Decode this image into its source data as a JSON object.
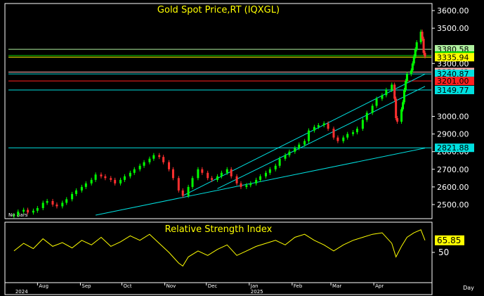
{
  "chart_data": [
    {
      "type": "candlestick",
      "title": "Gold Spot Price,RT (IQXGL)",
      "ylim": [
        2420,
        3640
      ],
      "y_ticks": [
        "3600.00",
        "3500.00",
        "3300.00",
        "3000.00",
        "2900.00",
        "2800.00",
        "2700.00",
        "2600.00",
        "2500.00"
      ],
      "no_bars_label": "No Bars",
      "series": [
        {
          "name": "",
          "points": [
            [
              "2024-07-15",
              2440
            ],
            [
              "2024-07-18",
              2460
            ],
            [
              "2024-07-22",
              2470
            ],
            [
              "2024-07-25",
              2455
            ],
            [
              "2024-07-29",
              2465
            ],
            [
              "2024-08-01",
              2480
            ],
            [
              "2024-08-05",
              2510
            ],
            [
              "2024-08-08",
              2520
            ],
            [
              "2024-08-12",
              2500
            ],
            [
              "2024-08-15",
              2490
            ],
            [
              "2024-08-19",
              2510
            ],
            [
              "2024-08-22",
              2530
            ],
            [
              "2024-08-26",
              2560
            ],
            [
              "2024-08-29",
              2580
            ],
            [
              "2024-09-02",
              2600
            ],
            [
              "2024-09-05",
              2620
            ],
            [
              "2024-09-09",
              2640
            ],
            [
              "2024-09-12",
              2670
            ],
            [
              "2024-09-16",
              2660
            ],
            [
              "2024-09-19",
              2650
            ],
            [
              "2024-09-23",
              2640
            ],
            [
              "2024-09-26",
              2620
            ],
            [
              "2024-09-30",
              2640
            ],
            [
              "2024-10-03",
              2660
            ],
            [
              "2024-10-07",
              2680
            ],
            [
              "2024-10-10",
              2700
            ],
            [
              "2024-10-14",
              2720
            ],
            [
              "2024-10-17",
              2740
            ],
            [
              "2024-10-21",
              2760
            ],
            [
              "2024-10-24",
              2780
            ],
            [
              "2024-10-28",
              2770
            ],
            [
              "2024-10-31",
              2740
            ],
            [
              "2024-11-04",
              2700
            ],
            [
              "2024-11-07",
              2650
            ],
            [
              "2024-11-11",
              2580
            ],
            [
              "2024-11-14",
              2550
            ],
            [
              "2024-11-18",
              2600
            ],
            [
              "2024-11-21",
              2650
            ],
            [
              "2024-11-25",
              2700
            ],
            [
              "2024-11-28",
              2680
            ],
            [
              "2024-12-02",
              2650
            ],
            [
              "2024-12-05",
              2640
            ],
            [
              "2024-12-09",
              2660
            ],
            [
              "2024-12-12",
              2680
            ],
            [
              "2024-12-16",
              2700
            ],
            [
              "2024-12-19",
              2660
            ],
            [
              "2024-12-23",
              2620
            ],
            [
              "2024-12-26",
              2600
            ],
            [
              "2024-12-30",
              2610
            ],
            [
              "2025-01-02",
              2620
            ],
            [
              "2025-01-06",
              2640
            ],
            [
              "2025-01-09",
              2660
            ],
            [
              "2025-01-13",
              2680
            ],
            [
              "2025-01-16",
              2700
            ],
            [
              "2025-01-20",
              2720
            ],
            [
              "2025-01-23",
              2760
            ],
            [
              "2025-01-27",
              2780
            ],
            [
              "2025-01-30",
              2800
            ],
            [
              "2025-02-03",
              2820
            ],
            [
              "2025-02-06",
              2840
            ],
            [
              "2025-02-10",
              2860
            ],
            [
              "2025-02-13",
              2920
            ],
            [
              "2025-02-17",
              2940
            ],
            [
              "2025-02-20",
              2950
            ],
            [
              "2025-02-24",
              2960
            ],
            [
              "2025-02-27",
              2930
            ],
            [
              "2025-03-03",
              2880
            ],
            [
              "2025-03-06",
              2860
            ],
            [
              "2025-03-10",
              2880
            ],
            [
              "2025-03-13",
              2900
            ],
            [
              "2025-03-17",
              2910
            ],
            [
              "2025-03-20",
              2930
            ],
            [
              "2025-03-24",
              2980
            ],
            [
              "2025-03-27",
              3020
            ],
            [
              "2025-03-31",
              3060
            ],
            [
              "2025-04-03",
              3100
            ],
            [
              "2025-04-07",
              3120
            ],
            [
              "2025-04-10",
              3150
            ],
            [
              "2025-04-14",
              3180
            ],
            [
              "2025-04-16",
              3100
            ],
            [
              "2025-04-17",
              2990
            ],
            [
              "2025-04-18",
              2970
            ],
            [
              "2025-04-21",
              3040
            ],
            [
              "2025-04-22",
              3080
            ],
            [
              "2025-04-23",
              3150
            ],
            [
              "2025-04-24",
              3200
            ],
            [
              "2025-04-25",
              3240
            ],
            [
              "2025-04-28",
              3260
            ],
            [
              "2025-04-29",
              3300
            ],
            [
              "2025-04-30",
              3340
            ],
            [
              "2025-05-01",
              3380
            ],
            [
              "2025-05-02",
              3420
            ],
            [
              "2025-05-05",
              3480
            ],
            [
              "2025-05-06",
              3440
            ],
            [
              "2025-05-07",
              3360
            ],
            [
              "2025-05-08",
              3340
            ]
          ]
        }
      ],
      "horizontal_levels": [
        {
          "value": 3380.58,
          "label": "3380.58",
          "line_color": "#b0f0a0",
          "box_color": "#b0f0a0",
          "text_color": "#000000"
        },
        {
          "value": 3345.0,
          "label": "3345.00",
          "line_color": "#00d000",
          "box_color": "#00d000",
          "text_color": "#000000"
        },
        {
          "value": 3335.94,
          "label": "3335.94",
          "line_color": "#ffff00",
          "box_color": "#ffff00",
          "text_color": "#000000"
        },
        {
          "value": 3251.42,
          "label": "3251.42",
          "line_color": "#ffb0b0",
          "box_color": "#ffb0b0",
          "text_color": "#000000"
        },
        {
          "value": 3240.87,
          "label": "3240.87",
          "line_color": "#00e0e0",
          "box_color": "#00e0e0",
          "text_color": "#000000"
        },
        {
          "value": 3201.0,
          "label": "3201.00",
          "line_color": "#ff2020",
          "box_color": "#ff2020",
          "text_color": "#000000"
        },
        {
          "value": 3149.77,
          "label": "3149.77",
          "line_color": "#00e0e0",
          "box_color": "#00e0e0",
          "text_color": "#000000"
        },
        {
          "value": 2821.88,
          "label": "2821.88",
          "line_color": "#00e0e0",
          "box_color": "#00e0e0",
          "text_color": "#000000"
        }
      ],
      "trendlines": [
        {
          "from": [
            "2024-09-12",
            2440
          ],
          "to": [
            "2025-05-08",
            2820
          ],
          "color": "#00e0e0"
        },
        {
          "from": [
            "2024-11-14",
            2550
          ],
          "to": [
            "2025-05-08",
            3240
          ],
          "color": "#00e0e0"
        },
        {
          "from": [
            "2024-12-09",
            2590
          ],
          "to": [
            "2025-05-08",
            3170
          ],
          "color": "#00e0e0"
        }
      ]
    },
    {
      "type": "line",
      "title": "Relative Strength Index",
      "ylim": [
        10,
        90
      ],
      "y_ticks": [
        "50"
      ],
      "last_value_label": "65.85",
      "series": [
        {
          "name": "",
          "color": "#ffff00",
          "points": [
            [
              "2024-07-15",
              52
            ],
            [
              "2024-07-22",
              62
            ],
            [
              "2024-07-29",
              55
            ],
            [
              "2024-08-05",
              68
            ],
            [
              "2024-08-12",
              58
            ],
            [
              "2024-08-19",
              63
            ],
            [
              "2024-08-26",
              56
            ],
            [
              "2024-09-02",
              66
            ],
            [
              "2024-09-09",
              60
            ],
            [
              "2024-09-16",
              70
            ],
            [
              "2024-09-23",
              58
            ],
            [
              "2024-09-30",
              64
            ],
            [
              "2024-10-07",
              72
            ],
            [
              "2024-10-14",
              66
            ],
            [
              "2024-10-21",
              74
            ],
            [
              "2024-10-28",
              62
            ],
            [
              "2024-11-04",
              50
            ],
            [
              "2024-11-11",
              36
            ],
            [
              "2024-11-14",
              32
            ],
            [
              "2024-11-18",
              44
            ],
            [
              "2024-11-25",
              52
            ],
            [
              "2024-12-02",
              46
            ],
            [
              "2024-12-09",
              54
            ],
            [
              "2024-12-16",
              60
            ],
            [
              "2024-12-23",
              46
            ],
            [
              "2024-12-30",
              52
            ],
            [
              "2025-01-06",
              58
            ],
            [
              "2025-01-13",
              62
            ],
            [
              "2025-01-20",
              66
            ],
            [
              "2025-01-27",
              60
            ],
            [
              "2025-02-03",
              70
            ],
            [
              "2025-02-10",
              74
            ],
            [
              "2025-02-17",
              66
            ],
            [
              "2025-02-24",
              60
            ],
            [
              "2025-03-03",
              52
            ],
            [
              "2025-03-10",
              60
            ],
            [
              "2025-03-17",
              66
            ],
            [
              "2025-03-24",
              70
            ],
            [
              "2025-03-31",
              74
            ],
            [
              "2025-04-07",
              76
            ],
            [
              "2025-04-14",
              62
            ],
            [
              "2025-04-17",
              44
            ],
            [
              "2025-04-21",
              58
            ],
            [
              "2025-04-25",
              70
            ],
            [
              "2025-04-30",
              76
            ],
            [
              "2025-05-05",
              80
            ],
            [
              "2025-05-08",
              66
            ]
          ]
        }
      ]
    }
  ],
  "time_axis": {
    "months": [
      {
        "date": "2024-08-01",
        "label": "Aug"
      },
      {
        "date": "2024-09-01",
        "label": "Sep"
      },
      {
        "date": "2024-10-01",
        "label": "Oct"
      },
      {
        "date": "2024-11-01",
        "label": "Nov"
      },
      {
        "date": "2024-12-01",
        "label": "Dec"
      },
      {
        "date": "2025-01-01",
        "label": "Jan"
      },
      {
        "date": "2025-02-01",
        "label": "Feb"
      },
      {
        "date": "2025-03-01",
        "label": "Mar"
      },
      {
        "date": "2025-04-01",
        "label": "Apr"
      }
    ],
    "years": [
      {
        "date": "2024-07-15",
        "label": "2024"
      },
      {
        "date": "2025-01-01",
        "label": "2025"
      }
    ],
    "interval_label": "Day"
  },
  "colors": {
    "background": "#000000",
    "up_candle": "#00ff00",
    "down_candle": "#ff3030",
    "frame": "#ffffff",
    "title": "#ffff00",
    "rsi_line": "#ffff00"
  }
}
